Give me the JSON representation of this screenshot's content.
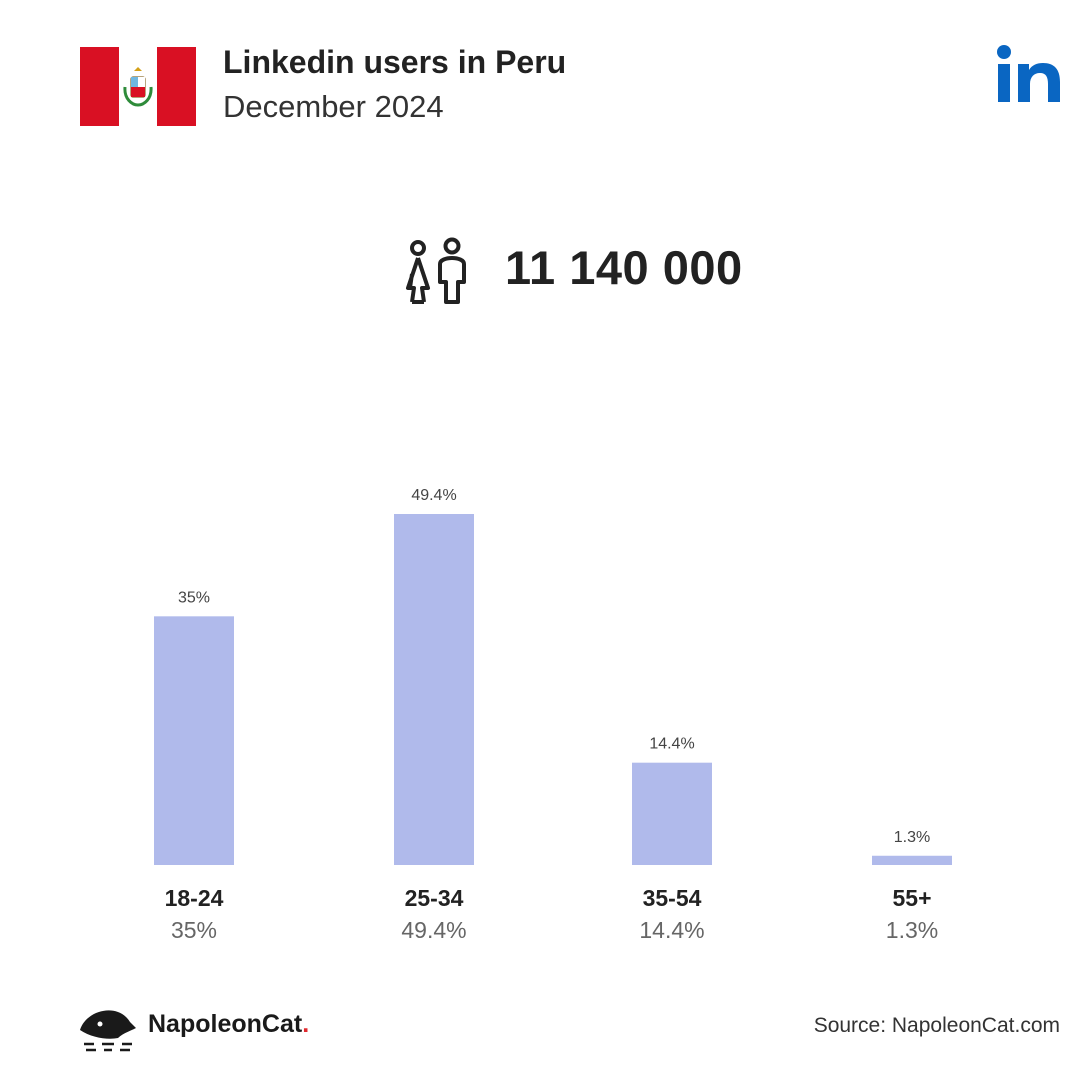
{
  "header": {
    "title": "Linkedin users in Peru",
    "subtitle": "December 2024",
    "flag_icon": "peru-flag-icon",
    "logo_icon": "linkedin-logo-icon"
  },
  "total": {
    "value": "11 140 000",
    "icon": "users-icon"
  },
  "chart_data": {
    "type": "bar",
    "categories": [
      "18-24",
      "25-34",
      "35-54",
      "55+"
    ],
    "values": [
      35,
      49.4,
      14.4,
      1.3
    ],
    "value_labels": [
      "35%",
      "49.4%",
      "14.4%",
      "1.3%"
    ],
    "ylim": [
      0,
      49.4
    ],
    "grid": false,
    "bar_color": "#b0baeb"
  },
  "footer": {
    "brand": "NapoleonCat",
    "brand_dot": ".",
    "source": "Source: NapoleonCat.com"
  },
  "colors": {
    "flag_red": "#d91023",
    "linkedin_blue": "#0a66c2",
    "text_dark": "#222222",
    "text_muted": "#666666"
  }
}
